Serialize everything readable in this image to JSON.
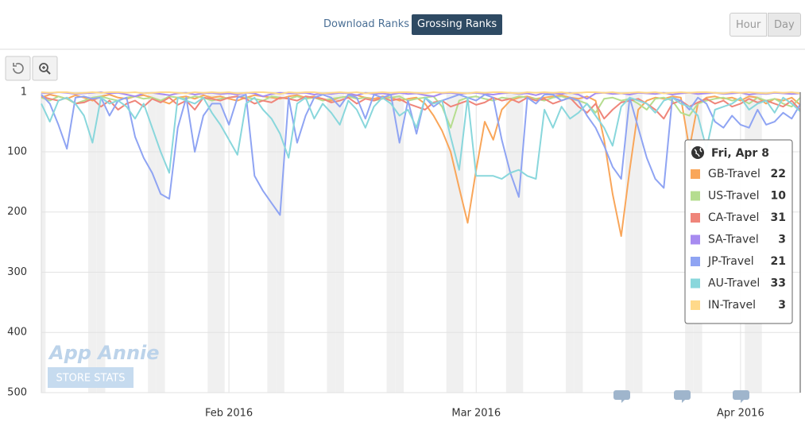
{
  "controls": {
    "rank_types": [
      "Download Ranks",
      "Grossing Ranks"
    ],
    "intervals": [
      "Hour",
      "Day"
    ]
  },
  "watermark": {
    "title": "App Annie",
    "subtitle": "STORE STATS"
  },
  "tooltip": {
    "title": "Fri, Apr 8"
  },
  "chart_data": {
    "type": "line",
    "y_inverted": true,
    "grid": true,
    "ylim": [
      1,
      500
    ],
    "yticks": [
      1,
      100,
      200,
      300,
      400,
      500
    ],
    "xlim": [
      "2016-01-10",
      "2016-04-08"
    ],
    "xticks": [
      {
        "value": "2016-02-01",
        "label": "Feb 2016"
      },
      {
        "value": "2016-03-01",
        "label": "Mar 2016"
      },
      {
        "value": "2016-04-01",
        "label": "Apr 2016"
      }
    ],
    "x": [
      "2016-01-10",
      "2016-01-11",
      "2016-01-12",
      "2016-01-13",
      "2016-01-14",
      "2016-01-15",
      "2016-01-16",
      "2016-01-17",
      "2016-01-18",
      "2016-01-19",
      "2016-01-20",
      "2016-01-21",
      "2016-01-22",
      "2016-01-23",
      "2016-01-24",
      "2016-01-25",
      "2016-01-26",
      "2016-01-27",
      "2016-01-28",
      "2016-01-29",
      "2016-01-30",
      "2016-01-31",
      "2016-02-01",
      "2016-02-02",
      "2016-02-03",
      "2016-02-04",
      "2016-02-05",
      "2016-02-06",
      "2016-02-07",
      "2016-02-08",
      "2016-02-09",
      "2016-02-10",
      "2016-02-11",
      "2016-02-12",
      "2016-02-13",
      "2016-02-14",
      "2016-02-15",
      "2016-02-16",
      "2016-02-17",
      "2016-02-18",
      "2016-02-19",
      "2016-02-20",
      "2016-02-21",
      "2016-02-22",
      "2016-02-23",
      "2016-02-24",
      "2016-02-25",
      "2016-02-26",
      "2016-02-27",
      "2016-02-28",
      "2016-02-29",
      "2016-03-01",
      "2016-03-02",
      "2016-03-03",
      "2016-03-04",
      "2016-03-05",
      "2016-03-06",
      "2016-03-07",
      "2016-03-08",
      "2016-03-09",
      "2016-03-10",
      "2016-03-11",
      "2016-03-12",
      "2016-03-13",
      "2016-03-14",
      "2016-03-15",
      "2016-03-16",
      "2016-03-17",
      "2016-03-18",
      "2016-03-19",
      "2016-03-20",
      "2016-03-21",
      "2016-03-22",
      "2016-03-23",
      "2016-03-24",
      "2016-03-25",
      "2016-03-26",
      "2016-03-27",
      "2016-03-28",
      "2016-03-29",
      "2016-03-30",
      "2016-03-31",
      "2016-04-01",
      "2016-04-02",
      "2016-04-03",
      "2016-04-04",
      "2016-04-05",
      "2016-04-06",
      "2016-04-07",
      "2016-04-08"
    ],
    "series": [
      {
        "name": "GB-Travel",
        "color": "#f9a65a",
        "values": [
          10,
          5,
          8,
          12,
          6,
          10,
          15,
          8,
          5,
          10,
          12,
          8,
          6,
          10,
          15,
          20,
          10,
          8,
          12,
          6,
          10,
          8,
          12,
          15,
          10,
          6,
          8,
          10,
          12,
          8,
          6,
          10,
          8,
          12,
          15,
          10,
          8,
          6,
          10,
          12,
          8,
          10,
          15,
          12,
          10,
          20,
          40,
          65,
          100,
          160,
          218,
          130,
          50,
          80,
          30,
          15,
          10,
          8,
          12,
          10,
          8,
          6,
          10,
          12,
          8,
          15,
          80,
          170,
          240,
          130,
          30,
          15,
          10,
          12,
          8,
          10,
          95,
          20,
          10,
          8,
          12,
          10,
          15,
          8,
          10,
          20,
          12,
          15,
          10,
          22
        ]
      },
      {
        "name": "US-Travel",
        "color": "#b5dd8f",
        "values": [
          10,
          15,
          8,
          12,
          20,
          15,
          10,
          8,
          12,
          15,
          10,
          8,
          12,
          10,
          15,
          8,
          10,
          12,
          8,
          10,
          15,
          12,
          10,
          8,
          10,
          12,
          15,
          8,
          10,
          12,
          8,
          12,
          10,
          15,
          12,
          10,
          8,
          12,
          10,
          15,
          12,
          10,
          8,
          15,
          12,
          10,
          8,
          25,
          60,
          15,
          10,
          8,
          12,
          15,
          10,
          12,
          8,
          10,
          12,
          15,
          10,
          8,
          12,
          15,
          20,
          35,
          12,
          10,
          15,
          12,
          20,
          30,
          12,
          10,
          15,
          35,
          40,
          20,
          15,
          12,
          10,
          15,
          12,
          20,
          10,
          15,
          12,
          20,
          25,
          10
        ]
      },
      {
        "name": "CA-Travel",
        "color": "#ef857a",
        "values": [
          8,
          12,
          15,
          10,
          20,
          18,
          12,
          25,
          15,
          30,
          20,
          15,
          25,
          12,
          18,
          10,
          22,
          15,
          30,
          10,
          12,
          15,
          10,
          8,
          12,
          20,
          15,
          18,
          10,
          12,
          15,
          8,
          10,
          12,
          18,
          15,
          10,
          20,
          12,
          15,
          10,
          15,
          12,
          20,
          25,
          30,
          18,
          15,
          25,
          20,
          15,
          22,
          18,
          10,
          15,
          12,
          18,
          10,
          15,
          12,
          20,
          15,
          10,
          25,
          35,
          20,
          45,
          30,
          18,
          15,
          12,
          20,
          30,
          45,
          20,
          15,
          25,
          18,
          12,
          20,
          15,
          25,
          20,
          12,
          18,
          15,
          20,
          25,
          15,
          31
        ]
      },
      {
        "name": "SA-Travel",
        "color": "#a78bf0",
        "values": [
          2,
          3,
          1,
          2,
          4,
          3,
          2,
          1,
          3,
          2,
          5,
          8,
          3,
          2,
          4,
          6,
          3,
          2,
          5,
          3,
          2,
          4,
          3,
          5,
          2,
          3,
          8,
          4,
          2,
          3,
          3,
          2,
          5,
          3,
          4,
          2,
          3,
          6,
          2,
          4,
          3,
          5,
          2,
          4,
          3,
          6,
          8,
          3,
          2,
          4,
          3,
          2,
          4,
          5,
          3,
          2,
          4,
          3,
          6,
          2,
          3,
          4,
          2,
          5,
          12,
          3,
          2,
          4,
          3,
          5,
          2,
          3,
          4,
          2,
          5,
          3,
          2,
          4,
          3,
          2,
          4,
          3,
          2,
          5,
          3,
          4,
          2,
          3,
          4,
          3
        ]
      },
      {
        "name": "JP-Travel",
        "color": "#8fa4f3",
        "values": [
          5,
          20,
          55,
          95,
          10,
          8,
          12,
          10,
          40,
          15,
          10,
          75,
          110,
          135,
          170,
          178,
          60,
          10,
          100,
          40,
          20,
          20,
          55,
          10,
          5,
          140,
          165,
          185,
          205,
          10,
          85,
          40,
          10,
          5,
          10,
          25,
          5,
          10,
          45,
          5,
          10,
          5,
          85,
          15,
          70,
          10,
          25,
          15,
          10,
          5,
          10,
          15,
          5,
          10,
          80,
          135,
          175,
          10,
          20,
          5,
          5,
          15,
          10,
          15,
          40,
          60,
          90,
          125,
          145,
          10,
          60,
          110,
          145,
          160,
          10,
          15,
          30,
          10,
          20,
          50,
          60,
          40,
          55,
          60,
          30,
          55,
          50,
          35,
          45,
          21
        ]
      },
      {
        "name": "AU-Travel",
        "color": "#89d7dc",
        "values": [
          20,
          50,
          15,
          10,
          20,
          40,
          85,
          10,
          20,
          15,
          25,
          45,
          20,
          60,
          100,
          135,
          10,
          15,
          20,
          10,
          35,
          55,
          80,
          105,
          20,
          10,
          30,
          45,
          70,
          110,
          20,
          10,
          45,
          20,
          35,
          55,
          15,
          30,
          60,
          25,
          10,
          20,
          40,
          30,
          60,
          10,
          20,
          15,
          75,
          130,
          10,
          140,
          140,
          140,
          145,
          135,
          130,
          140,
          145,
          30,
          60,
          25,
          45,
          35,
          20,
          40,
          60,
          90,
          25,
          10,
          15,
          20,
          35,
          15,
          10,
          20,
          25,
          40,
          95,
          30,
          25,
          20,
          10,
          30,
          20,
          15,
          35,
          10,
          20,
          33
        ]
      },
      {
        "name": "IN-Travel",
        "color": "#ffd98a",
        "values": [
          1,
          2,
          1,
          1,
          3,
          2,
          1,
          2,
          1,
          1,
          2,
          1,
          3,
          2,
          1,
          1,
          2,
          3,
          1,
          2,
          1,
          2,
          1,
          3,
          2,
          1,
          1,
          2,
          4,
          1,
          2,
          1,
          1,
          3,
          2,
          1,
          2,
          1,
          3,
          2,
          1,
          2,
          1,
          1,
          2,
          3,
          1,
          2,
          1,
          2,
          3,
          1,
          2,
          1,
          1,
          2,
          3,
          1,
          2,
          1,
          2,
          1,
          3,
          2,
          1,
          1,
          2,
          1,
          3,
          2,
          1,
          2,
          1,
          3,
          2,
          1,
          2,
          1,
          1,
          2,
          3,
          1,
          2,
          1,
          2,
          3,
          1,
          2,
          1,
          3
        ]
      }
    ]
  }
}
